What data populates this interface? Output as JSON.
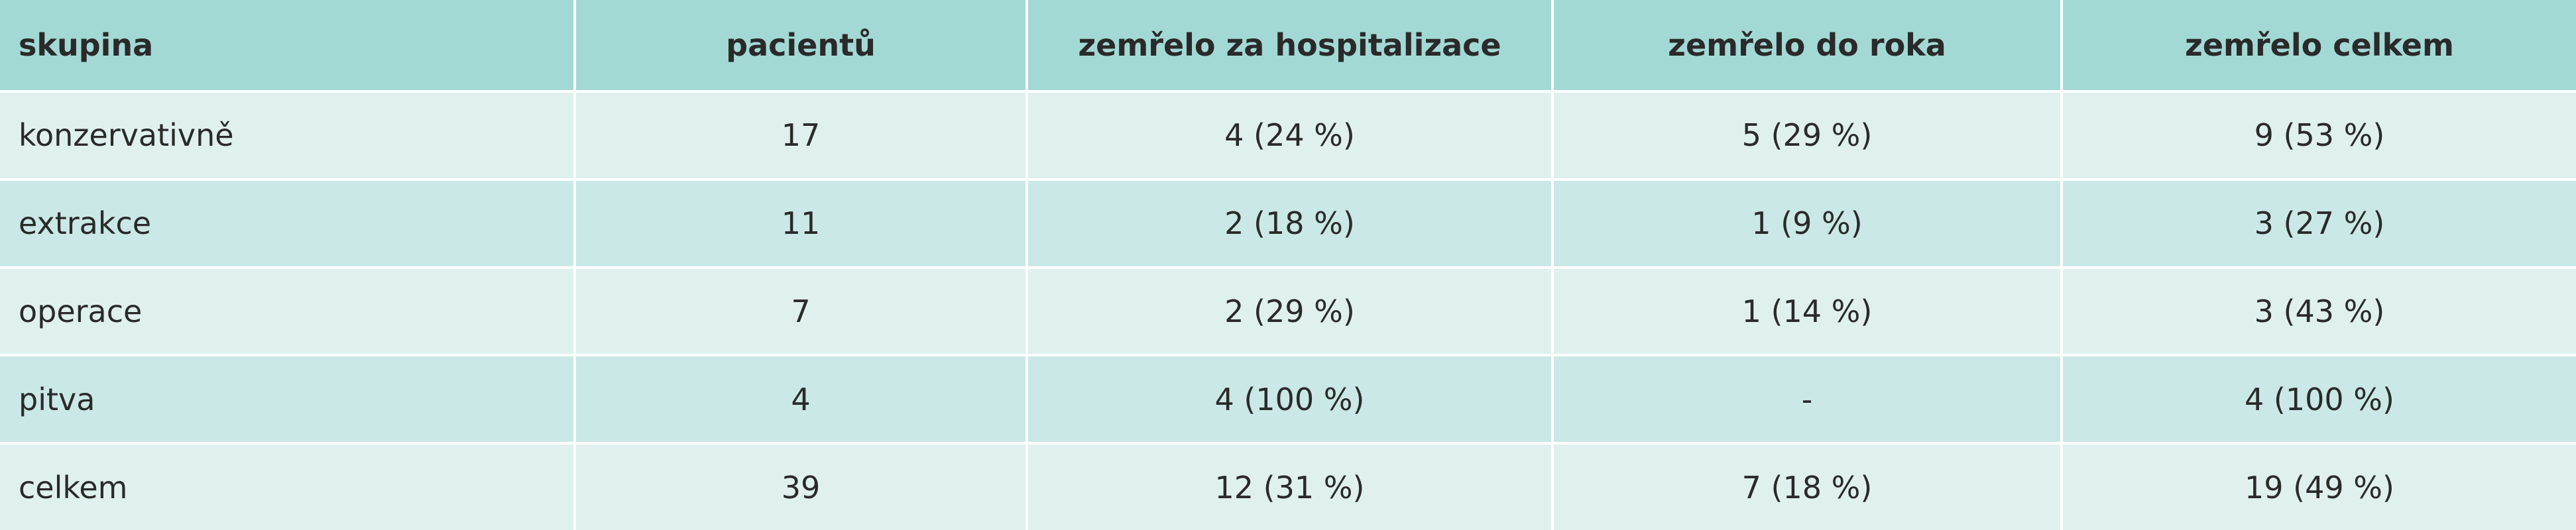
{
  "table": {
    "columns": [
      "skupina",
      "pacientů",
      "zemřelo za hospitalizace",
      "zemřelo do roka",
      "zemřelo celkem"
    ],
    "rows": [
      [
        "konzervativně",
        "17",
        "4 (24 %)",
        "5 (29 %)",
        "9 (53 %)"
      ],
      [
        "extrakce",
        "11",
        "2 (18 %)",
        "1 (9 %)",
        "3 (27 %)"
      ],
      [
        "operace",
        "7",
        "2 (29 %)",
        "1 (14 %)",
        "3 (43 %)"
      ],
      [
        "pitva",
        "4",
        "4 (100 %)",
        "-",
        "4 (100 %)"
      ],
      [
        "celkem",
        "39",
        "12 (31 %)",
        "7 (18 %)",
        "19 (49 %)"
      ]
    ]
  }
}
